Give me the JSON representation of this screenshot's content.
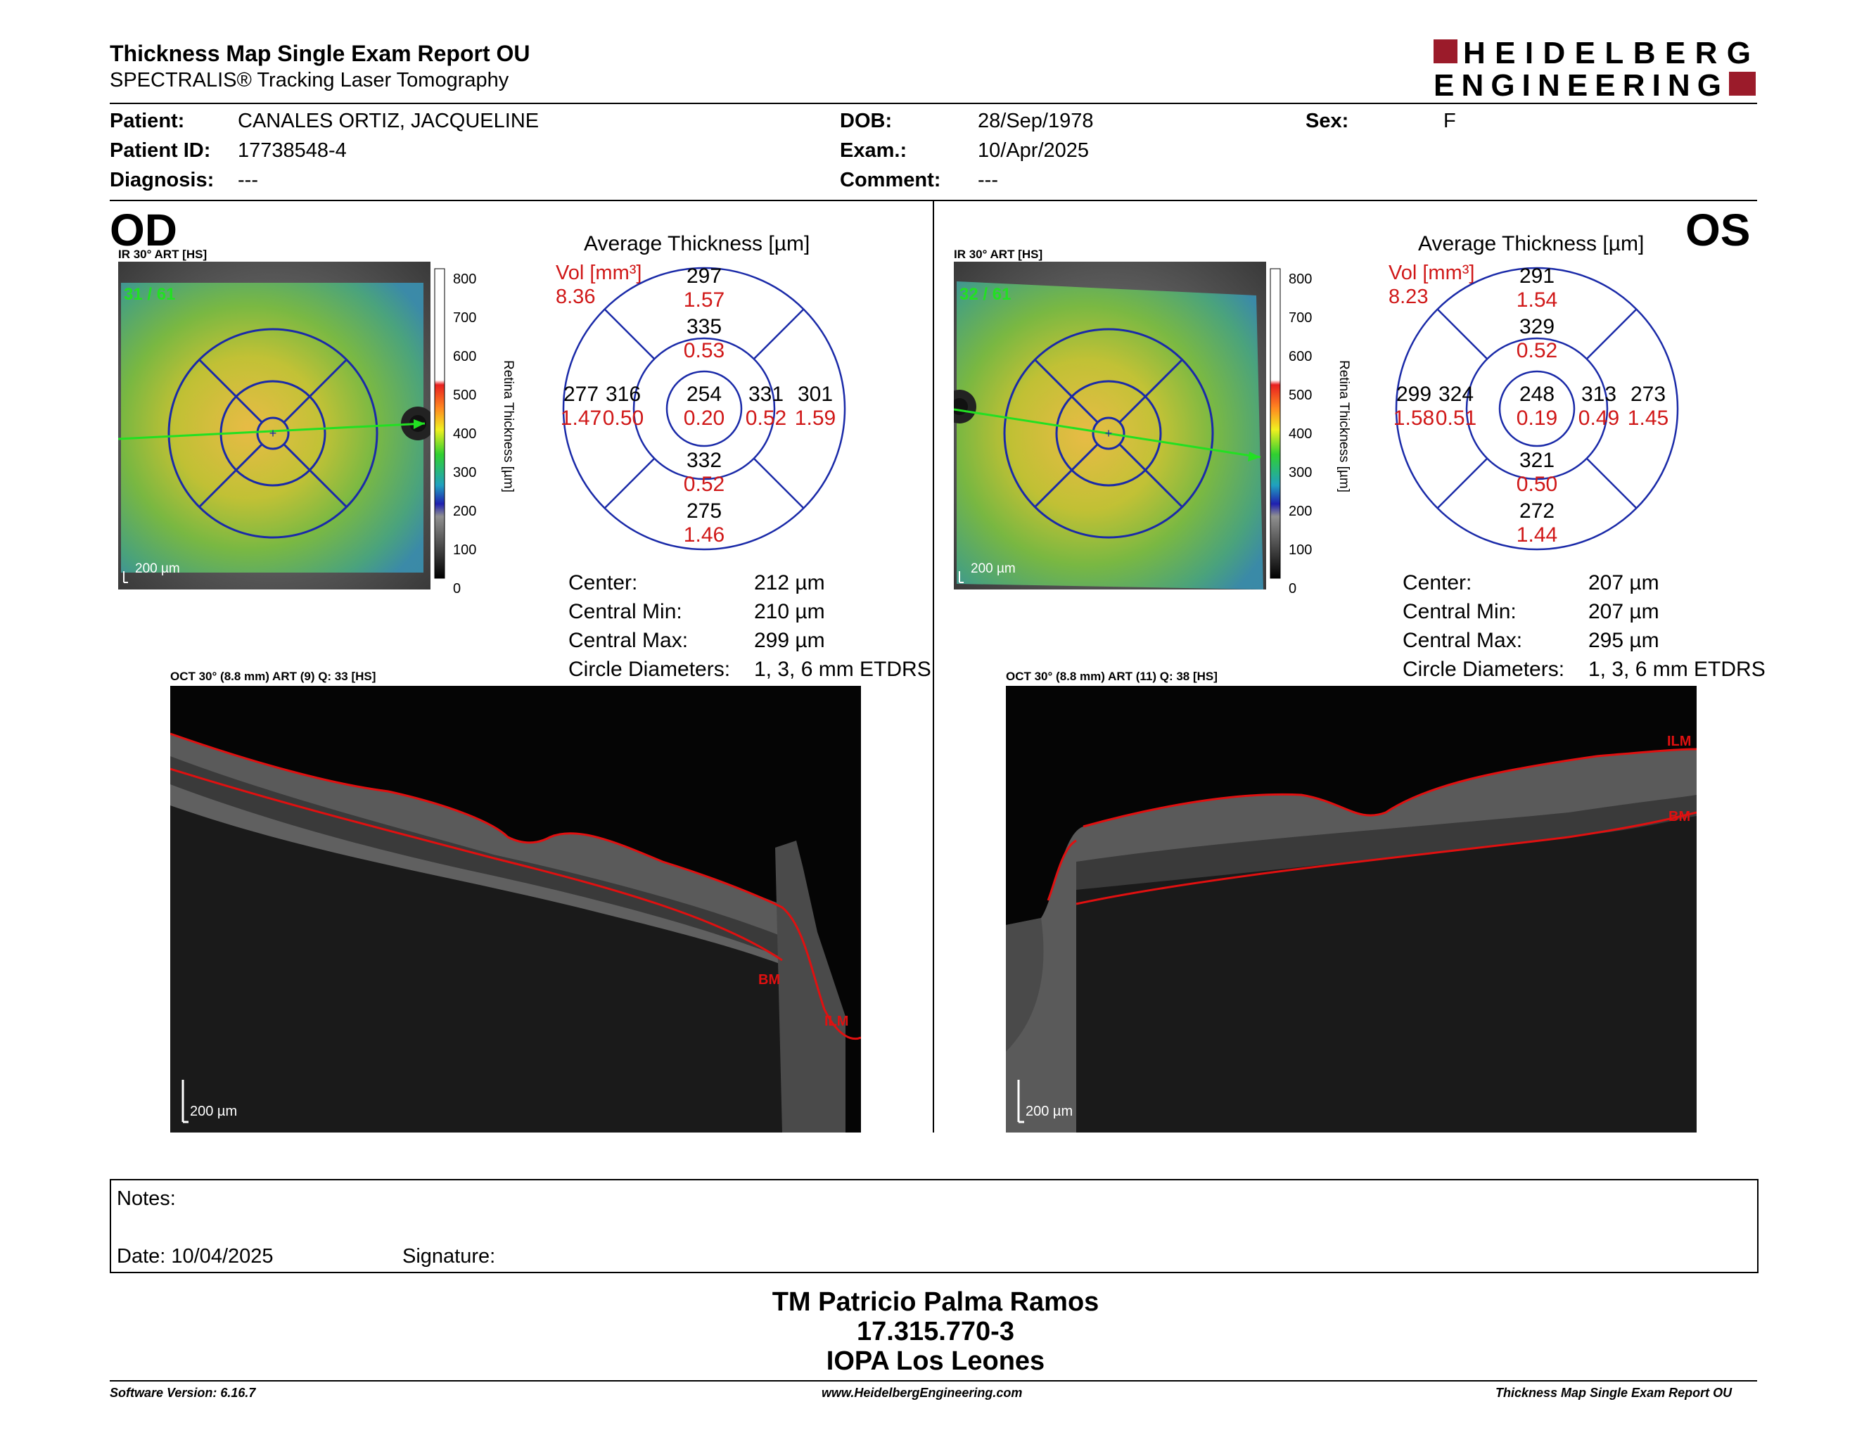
{
  "header": {
    "title": "Thickness Map Single Exam Report OU",
    "subtitle": "SPECTRALIS® Tracking Laser Tomography",
    "logo_line1": "HEIDELBERG",
    "logo_line2": "ENGINEERING"
  },
  "patient": {
    "patient_label": "Patient:",
    "patient_value": "CANALES ORTIZ, JACQUELINE",
    "id_label": "Patient ID:",
    "id_value": "17738548-4",
    "diagnosis_label": "Diagnosis:",
    "diagnosis_value": "---",
    "dob_label": "DOB:",
    "dob_value": "28/Sep/1978",
    "exam_label": "Exam.:",
    "exam_value": "10/Apr/2025",
    "comment_label": "Comment:",
    "comment_value": "---",
    "sex_label": "Sex:",
    "sex_value": "F"
  },
  "od": {
    "eye": "OD",
    "ir_label": "IR 30° ART [HS]",
    "frame": "31 / 61",
    "scale": "200 µm",
    "avg_title": "Average Thickness [µm]",
    "vol_label": "Vol [mm³]",
    "vol_value": "8.36",
    "center": {
      "t": "254",
      "v": "0.20"
    },
    "inner": {
      "top": {
        "t": "335",
        "v": "0.53"
      },
      "left": {
        "t": "316",
        "v": "0.50"
      },
      "right": {
        "t": "331",
        "v": "0.52"
      },
      "bottom": {
        "t": "332",
        "v": "0.52"
      }
    },
    "outer": {
      "top": {
        "t": "297",
        "v": "1.57"
      },
      "left": {
        "t": "277",
        "v": "1.47"
      },
      "right": {
        "t": "301",
        "v": "1.59"
      },
      "bottom": {
        "t": "275",
        "v": "1.46"
      }
    },
    "stats": [
      {
        "label": "Center:",
        "value": "212 µm"
      },
      {
        "label": "Central Min:",
        "value": "210 µm"
      },
      {
        "label": "Central Max:",
        "value": "299 µm"
      },
      {
        "label": "Circle Diameters:",
        "value": "1, 3, 6 mm ETDRS"
      }
    ],
    "oct_label": "OCT 30° (8.8 mm) ART (9) Q: 33 [HS]",
    "oct_scale": "200 µm",
    "ilm": "ILM",
    "bm": "BM"
  },
  "os": {
    "eye": "OS",
    "ir_label": "IR 30° ART [HS]",
    "frame": "32 / 61",
    "scale": "200 µm",
    "avg_title": "Average Thickness [µm]",
    "vol_label": "Vol [mm³]",
    "vol_value": "8.23",
    "center": {
      "t": "248",
      "v": "0.19"
    },
    "inner": {
      "top": {
        "t": "329",
        "v": "0.52"
      },
      "left": {
        "t": "324",
        "v": "0.51"
      },
      "right": {
        "t": "313",
        "v": "0.49"
      },
      "bottom": {
        "t": "321",
        "v": "0.50"
      }
    },
    "outer": {
      "top": {
        "t": "291",
        "v": "1.54"
      },
      "left": {
        "t": "299",
        "v": "1.58"
      },
      "right": {
        "t": "273",
        "v": "1.45"
      },
      "bottom": {
        "t": "272",
        "v": "1.44"
      }
    },
    "stats": [
      {
        "label": "Center:",
        "value": "207 µm"
      },
      {
        "label": "Central Min:",
        "value": "207 µm"
      },
      {
        "label": "Central Max:",
        "value": "295 µm"
      },
      {
        "label": "Circle Diameters:",
        "value": "1, 3, 6 mm ETDRS"
      }
    ],
    "oct_label": "OCT 30° (8.8 mm) ART (11) Q: 38 [HS]",
    "oct_scale": "200 µm",
    "ilm": "ILM",
    "bm": "BM"
  },
  "colorbar": {
    "ticks": [
      "800",
      "700",
      "600",
      "500",
      "400",
      "300",
      "200",
      "100",
      "0"
    ],
    "title": "Retina Thickness [µm]"
  },
  "notes": {
    "notes_label": "Notes:",
    "date_label": "Date: 10/04/2025",
    "signature_label": "Signature:"
  },
  "signatory": {
    "name": "TM Patricio Palma Ramos",
    "rut": "17.315.770-3",
    "org": "IOPA Los Leones"
  },
  "footer": {
    "software": "Software Version: 6.16.7",
    "url": "www.HeidelbergEngineering.com",
    "report": "Thickness Map Single Exam Report OU"
  },
  "colors": {
    "accent_red": "#d01818",
    "logo_red": "#9b1b2a",
    "grid_blue": "#1a2aa8",
    "chart_blue": "#2030a0"
  }
}
